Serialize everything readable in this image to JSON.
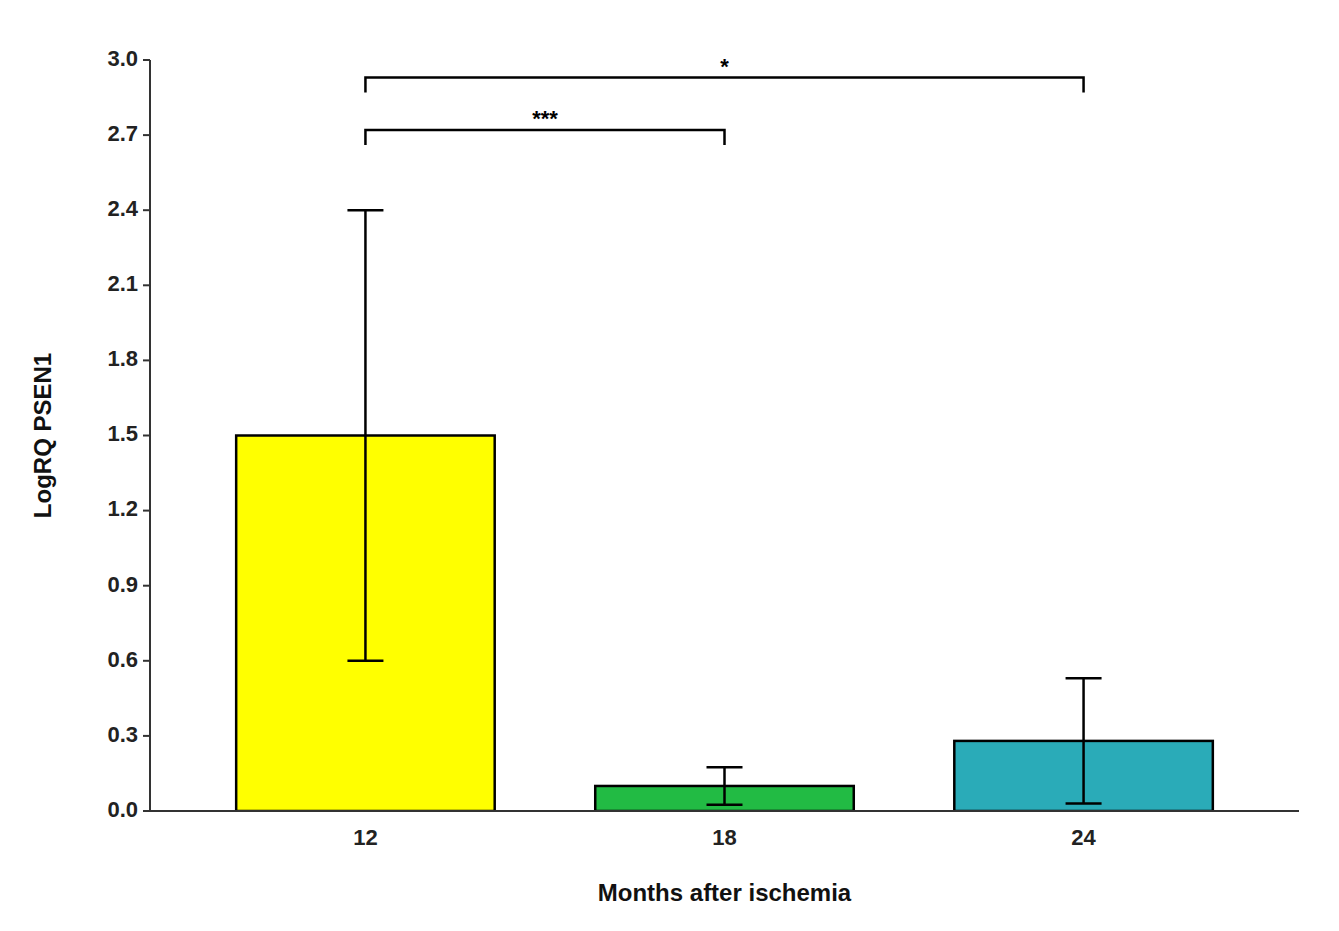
{
  "chart_data": {
    "type": "bar",
    "xlabel": "Months after ischemia",
    "ylabel": "LogRQ PSEN1",
    "categories": [
      "12",
      "18",
      "24"
    ],
    "values": [
      1.5,
      0.1,
      0.28
    ],
    "errors": [
      0.9,
      0.075,
      0.25
    ],
    "colors": [
      "#FFFF00",
      "#22BB44",
      "#2AABB8"
    ],
    "ylim": [
      0,
      3.0
    ],
    "yticks": [
      {
        "value": 0.0,
        "label": "0.0"
      },
      0.3,
      0.6,
      0.9,
      1.2,
      1.5,
      1.8,
      2.1,
      2.4,
      2.7,
      {
        "value": 3.0,
        "label": "3.0"
      }
    ],
    "grid": false,
    "annotations": [
      {
        "text": "***",
        "x1": "12",
        "x2": "18",
        "y": 2.72,
        "drop": 0.06
      },
      {
        "text": "*",
        "x1": "12",
        "x2": "24",
        "y": 2.93,
        "drop": 0.06
      }
    ]
  }
}
